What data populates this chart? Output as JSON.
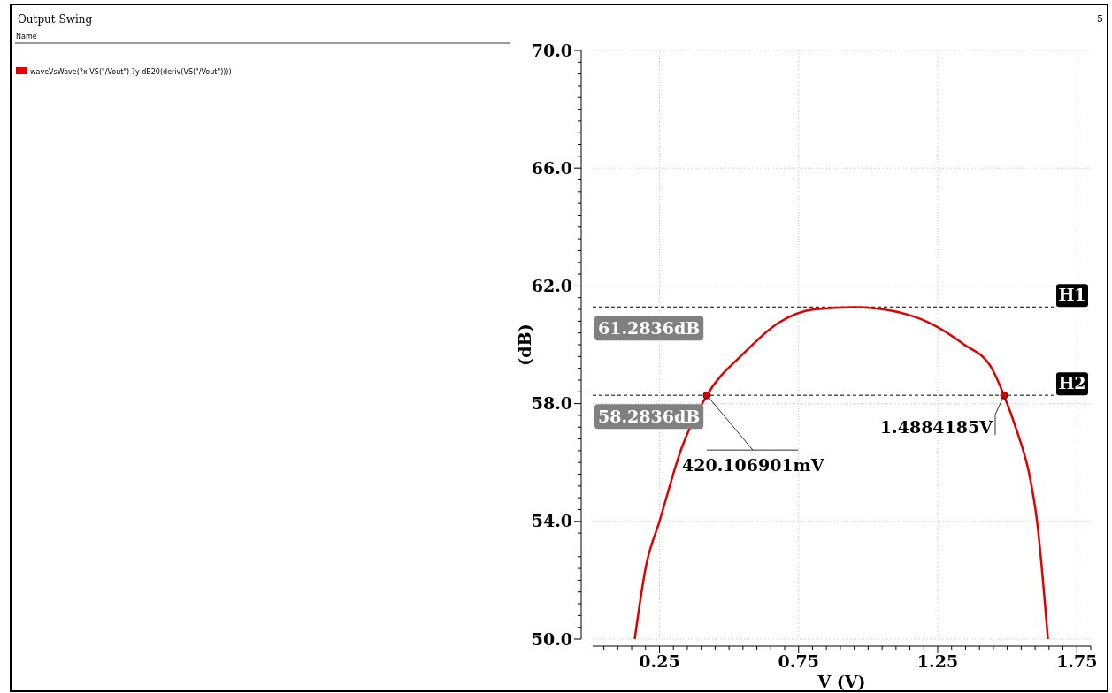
{
  "chart_data": {
    "type": "line",
    "title": "Output Swing",
    "legend_title": "Name",
    "xlabel": "V (V)",
    "ylabel": "(dB)",
    "series": [
      {
        "name": "waveVsWave(?x VS(\"/Vout\") ?y dB20(deriv(VS(\"/Vout\"))))",
        "color": "#e00000",
        "x": [
          0.161,
          0.202,
          0.25,
          0.33,
          0.42,
          0.552,
          0.679,
          0.806,
          0.95,
          1.092,
          1.219,
          1.346,
          1.441,
          1.488,
          1.537,
          1.578,
          1.607,
          1.646
        ],
        "values": [
          50,
          52.5,
          54.0,
          56.5,
          58.28,
          59.7,
          60.75,
          61.2,
          61.28,
          61.14,
          60.75,
          60.0,
          59.25,
          58.28,
          57.0,
          55.65,
          54.0,
          50
        ]
      },
      {
        "type": "scatter",
        "color": "#e00000",
        "marker": "circle",
        "x": [
          0.420107,
          1.4884185
        ],
        "values": [
          58.28,
          58.28
        ]
      }
    ],
    "xlim": [
      0.01,
      1.8
    ],
    "ylim": [
      50,
      70
    ],
    "xticks": [
      {
        "value": 0.05,
        "label": null
      },
      {
        "value": 0.1,
        "label": null
      },
      {
        "value": 0.15,
        "label": null
      },
      {
        "value": 0.2,
        "label": null
      },
      0.25,
      {
        "value": 0.3,
        "label": null
      },
      {
        "value": 0.35,
        "label": null
      },
      {
        "value": 0.4,
        "label": null
      },
      {
        "value": 0.45,
        "label": null
      },
      {
        "value": 0.5,
        "label": null
      },
      {
        "value": 0.55,
        "label": null
      },
      {
        "value": 0.6,
        "label": null
      },
      {
        "value": 0.65,
        "label": null
      },
      {
        "value": 0.7,
        "label": null
      },
      0.75,
      {
        "value": 0.8,
        "label": null
      },
      {
        "value": 0.85,
        "label": null
      },
      {
        "value": 0.9,
        "label": null
      },
      {
        "value": 0.95,
        "label": null
      },
      {
        "value": 1.0,
        "label": null
      },
      {
        "value": 1.05,
        "label": null
      },
      {
        "value": 1.1,
        "label": null
      },
      {
        "value": 1.15,
        "label": null
      },
      {
        "value": 1.2,
        "label": null
      },
      1.25,
      {
        "value": 1.3,
        "label": null
      },
      {
        "value": 1.35,
        "label": null
      },
      {
        "value": 1.4,
        "label": null
      },
      {
        "value": 1.45,
        "label": null
      },
      {
        "value": 1.5,
        "label": null
      },
      {
        "value": 1.55,
        "label": null
      },
      {
        "value": 1.6,
        "label": null
      },
      {
        "value": 1.65,
        "label": null
      },
      {
        "value": 1.7,
        "label": null
      },
      1.75,
      {
        "value": 1.8,
        "label": null
      }
    ],
    "yticks": [
      {
        "value": 50,
        "label": "50.0"
      },
      {
        "value": 50.4,
        "label": null
      },
      {
        "value": 50.8,
        "label": null
      },
      {
        "value": 51.2,
        "label": null
      },
      {
        "value": 51.6,
        "label": null
      },
      {
        "value": 52.0,
        "label": null
      },
      {
        "value": 52.4,
        "label": null
      },
      {
        "value": 52.8,
        "label": null
      },
      {
        "value": 53.2,
        "label": null
      },
      {
        "value": 53.6,
        "label": null
      },
      {
        "value": 54,
        "label": "54.0"
      },
      {
        "value": 54.4,
        "label": null
      },
      {
        "value": 54.8,
        "label": null
      },
      {
        "value": 55.2,
        "label": null
      },
      {
        "value": 55.6,
        "label": null
      },
      {
        "value": 56.0,
        "label": null
      },
      {
        "value": 56.4,
        "label": null
      },
      {
        "value": 56.8,
        "label": null
      },
      {
        "value": 57.2,
        "label": null
      },
      {
        "value": 57.6,
        "label": null
      },
      {
        "value": 58,
        "label": "58.0"
      },
      {
        "value": 58.4,
        "label": null
      },
      {
        "value": 58.8,
        "label": null
      },
      {
        "value": 59.2,
        "label": null
      },
      {
        "value": 59.6,
        "label": null
      },
      {
        "value": 60.0,
        "label": null
      },
      {
        "value": 60.4,
        "label": null
      },
      {
        "value": 60.8,
        "label": null
      },
      {
        "value": 61.2,
        "label": null
      },
      {
        "value": 61.6,
        "label": null
      },
      {
        "value": 62,
        "label": "62.0"
      },
      {
        "value": 62.4,
        "label": null
      },
      {
        "value": 62.8,
        "label": null
      },
      {
        "value": 63.2,
        "label": null
      },
      {
        "value": 63.6,
        "label": null
      },
      {
        "value": 64.0,
        "label": null
      },
      {
        "value": 64.4,
        "label": null
      },
      {
        "value": 64.8,
        "label": null
      },
      {
        "value": 65.2,
        "label": null
      },
      {
        "value": 65.6,
        "label": null
      },
      {
        "value": 66,
        "label": "66.0"
      },
      {
        "value": 66.4,
        "label": null
      },
      {
        "value": 66.8,
        "label": null
      },
      {
        "value": 67.2,
        "label": null
      },
      {
        "value": 67.6,
        "label": null
      },
      {
        "value": 68.0,
        "label": null
      },
      {
        "value": 68.4,
        "label": null
      },
      {
        "value": 68.8,
        "label": null
      },
      {
        "value": 69.2,
        "label": null
      },
      {
        "value": 69.6,
        "label": null
      },
      {
        "value": 70,
        "label": "70.0"
      }
    ],
    "grid": true,
    "legend": "top left",
    "line_style": "solid",
    "ref_lines": [
      {
        "axis": "y",
        "value": 61.2836,
        "label": "H1",
        "line_style": "dashed"
      },
      {
        "axis": "y",
        "value": 58.2836,
        "label": "H2",
        "line_style": "dashed"
      }
    ],
    "annotations": [
      {
        "text": "61.2836dB",
        "x": 0.02,
        "y": 61.2836
      },
      {
        "text": "58.2836dB",
        "x": 0.02,
        "y": 58.2836
      },
      {
        "text": "420.106901mV",
        "x": 0.420107,
        "y": 58.2836
      },
      {
        "text": "1.4884185V",
        "x": 1.4884185,
        "y": 58.2836
      },
      "5"
    ]
  }
}
